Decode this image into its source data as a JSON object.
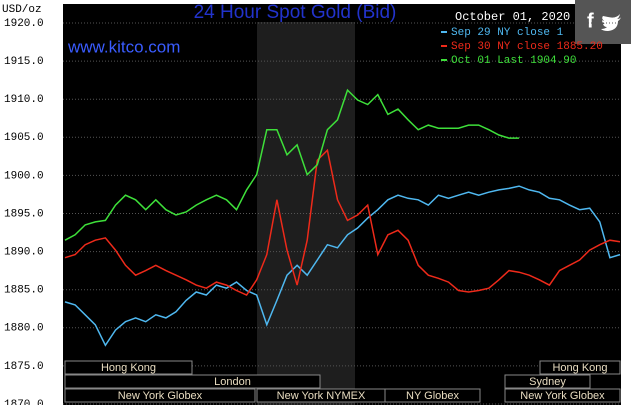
{
  "chart_data": {
    "type": "line",
    "title": "24 Hour Spot Gold (Bid)",
    "y_label": "USD/oz",
    "watermark": "www.kitco.com",
    "date": "October 01, 2020",
    "ylim": [
      1870,
      1920
    ],
    "yticks": [
      {
        "value": 1870,
        "label": "1870.0"
      },
      {
        "value": 1875,
        "label": "1875.0"
      },
      {
        "value": 1880,
        "label": "1880.0"
      },
      {
        "value": 1885,
        "label": "1885.0"
      },
      {
        "value": 1890,
        "label": "1890.0"
      },
      {
        "value": 1895,
        "label": "1895.0"
      },
      {
        "value": 1900,
        "label": "1900.0"
      },
      {
        "value": 1905,
        "label": "1905.0"
      },
      {
        "value": 1910,
        "label": "1910.0"
      },
      {
        "value": 1915,
        "label": "1915.0"
      },
      {
        "value": 1920,
        "label": "1920.0"
      }
    ],
    "grid": true,
    "legend": "top-right",
    "series": [
      {
        "name": "Sep 29 NY close 1",
        "color": "#4fb8f0",
        "values": [
          1883.4,
          1883.0,
          1881.7,
          1880.4,
          1877.7,
          1879.7,
          1880.8,
          1881.3,
          1880.8,
          1881.7,
          1881.3,
          1882.1,
          1883.6,
          1884.7,
          1884.3,
          1885.6,
          1885.2,
          1886.0,
          1884.9,
          1884.3,
          1880.4,
          1883.6,
          1886.9,
          1888.2,
          1886.9,
          1888.9,
          1890.9,
          1890.5,
          1892.2,
          1893.1,
          1894.4,
          1895.5,
          1896.8,
          1897.4,
          1897.0,
          1896.8,
          1896.1,
          1897.4,
          1897.0,
          1897.4,
          1897.8,
          1897.4,
          1897.8,
          1898.1,
          1898.3,
          1898.6,
          1898.1,
          1897.8,
          1897.0,
          1896.8,
          1896.1,
          1895.5,
          1895.7,
          1893.9,
          1889.2,
          1889.6
        ]
      },
      {
        "name": "Sep 30 NY close 1885.20",
        "color": "#ee2a1a",
        "values": [
          1889.2,
          1889.6,
          1890.9,
          1891.5,
          1891.8,
          1890.2,
          1888.2,
          1886.9,
          1887.5,
          1888.2,
          1887.5,
          1886.9,
          1886.3,
          1885.6,
          1885.2,
          1886.0,
          1885.6,
          1884.9,
          1884.3,
          1886.3,
          1889.6,
          1896.8,
          1890.2,
          1885.6,
          1891.5,
          1902.0,
          1903.3,
          1896.8,
          1894.1,
          1894.8,
          1896.1,
          1889.6,
          1892.2,
          1892.8,
          1891.5,
          1888.2,
          1886.9,
          1886.5,
          1886.0,
          1884.9,
          1884.7,
          1884.9,
          1885.2,
          1886.3,
          1887.5,
          1887.3,
          1886.9,
          1886.3,
          1885.6,
          1887.5,
          1888.2,
          1888.9,
          1890.2,
          1890.9,
          1891.5,
          1891.3
        ]
      },
      {
        "name": "Oct 01 Last 1904.90",
        "color": "#3ee03a",
        "values": [
          1891.5,
          1892.2,
          1893.5,
          1893.9,
          1894.1,
          1896.1,
          1897.4,
          1896.8,
          1895.5,
          1896.8,
          1895.5,
          1894.8,
          1895.2,
          1896.1,
          1896.8,
          1897.4,
          1896.8,
          1895.5,
          1898.1,
          1900.1,
          1906.0,
          1906.0,
          1902.7,
          1904.0,
          1900.1,
          1901.4,
          1906.0,
          1907.3,
          1911.2,
          1909.9,
          1909.3,
          1910.6,
          1908.0,
          1908.7,
          1907.3,
          1906.0,
          1906.6,
          1906.2,
          1906.2,
          1906.2,
          1906.6,
          1906.6,
          1906.0,
          1905.3,
          1904.9,
          1904.9,
          null,
          null,
          null,
          null,
          null,
          null,
          null,
          null,
          null,
          null
        ]
      }
    ],
    "sessions": [
      "Hong Kong",
      "Hong Kong",
      "London",
      "Sydney",
      "New York Globex",
      "New York NYMEX",
      "NY Globex",
      "New York Globex"
    ]
  }
}
